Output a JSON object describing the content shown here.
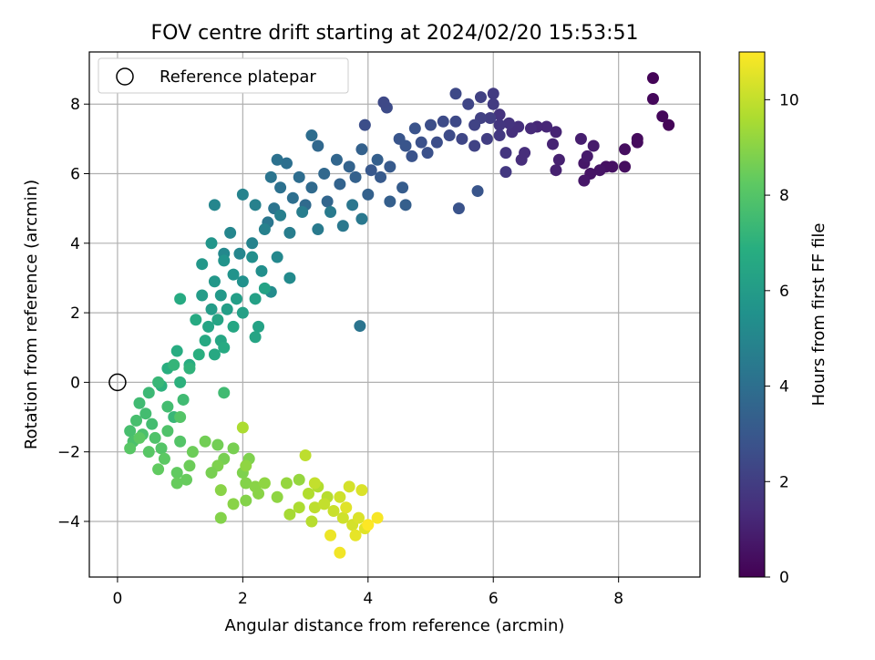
{
  "chart_data": {
    "type": "scatter",
    "title": "FOV centre drift starting at 2024/02/20 15:53:51",
    "xlabel": "Angular distance from reference (arcmin)",
    "ylabel": "Rotation from reference (arcmin)",
    "xlim": [
      -0.45,
      9.3
    ],
    "ylim": [
      -5.6,
      9.5
    ],
    "xticks": [
      0,
      2,
      4,
      6,
      8
    ],
    "yticks": [
      -4,
      -2,
      0,
      2,
      4,
      6,
      8
    ],
    "grid": true,
    "legend": {
      "placement": "top-left",
      "entries": [
        {
          "label": "Reference platepar",
          "marker": "open-circle"
        }
      ]
    },
    "reference_point": {
      "x": 0,
      "y": 0
    },
    "colorbar": {
      "label": "Hours from first FF file",
      "colormap": "viridis",
      "range": [
        0,
        11
      ],
      "ticks": [
        0,
        2,
        4,
        6,
        8,
        10
      ]
    },
    "points": [
      [
        8.55,
        8.75,
        0.1
      ],
      [
        8.8,
        7.4,
        0.1
      ],
      [
        8.7,
        7.65,
        0.2
      ],
      [
        8.55,
        8.15,
        0.2
      ],
      [
        8.3,
        7.0,
        0.3
      ],
      [
        8.3,
        6.9,
        0.3
      ],
      [
        8.1,
        6.7,
        0.4
      ],
      [
        8.1,
        6.2,
        0.4
      ],
      [
        7.9,
        6.2,
        0.5
      ],
      [
        7.8,
        6.2,
        0.5
      ],
      [
        7.7,
        6.1,
        0.6
      ],
      [
        7.55,
        6.0,
        0.6
      ],
      [
        7.45,
        5.8,
        0.7
      ],
      [
        7.45,
        6.3,
        0.7
      ],
      [
        7.5,
        6.5,
        0.8
      ],
      [
        7.6,
        6.8,
        0.8
      ],
      [
        7.4,
        7.0,
        0.9
      ],
      [
        7.05,
        6.4,
        1.0
      ],
      [
        7.0,
        6.1,
        1.0
      ],
      [
        7.0,
        7.2,
        1.1
      ],
      [
        6.95,
        6.85,
        1.1
      ],
      [
        6.85,
        7.35,
        1.2
      ],
      [
        6.7,
        7.35,
        1.2
      ],
      [
        6.6,
        7.3,
        1.3
      ],
      [
        6.45,
        6.4,
        1.4
      ],
      [
        6.5,
        6.6,
        1.4
      ],
      [
        6.4,
        7.35,
        1.5
      ],
      [
        6.3,
        7.2,
        1.5
      ],
      [
        6.25,
        7.45,
        1.6
      ],
      [
        6.1,
        7.7,
        1.6
      ],
      [
        6.1,
        7.4,
        1.7
      ],
      [
        6.2,
        6.6,
        1.7
      ],
      [
        6.2,
        6.05,
        1.8
      ],
      [
        6.1,
        7.1,
        1.8
      ],
      [
        6.0,
        8.0,
        1.9
      ],
      [
        6.0,
        8.3,
        1.9
      ],
      [
        5.95,
        7.6,
        2.0
      ],
      [
        5.9,
        7.0,
        2.0
      ],
      [
        5.8,
        8.2,
        2.1
      ],
      [
        5.8,
        7.6,
        2.1
      ],
      [
        5.7,
        6.8,
        2.2
      ],
      [
        5.7,
        7.4,
        2.2
      ],
      [
        5.6,
        8.0,
        2.3
      ],
      [
        5.5,
        7.0,
        2.3
      ],
      [
        5.4,
        8.3,
        2.4
      ],
      [
        5.4,
        7.5,
        2.4
      ],
      [
        5.3,
        7.1,
        2.5
      ],
      [
        5.2,
        7.5,
        2.5
      ],
      [
        5.1,
        6.9,
        2.6
      ],
      [
        5.0,
        7.4,
        2.6
      ],
      [
        4.95,
        6.6,
        2.7
      ],
      [
        4.85,
        6.9,
        2.7
      ],
      [
        4.75,
        7.3,
        2.8
      ],
      [
        4.7,
        6.5,
        2.8
      ],
      [
        4.6,
        6.8,
        2.9
      ],
      [
        4.5,
        7.0,
        2.9
      ],
      [
        5.45,
        5.0,
        2.8
      ],
      [
        5.75,
        5.5,
        2.9
      ],
      [
        4.3,
        7.9,
        2.5
      ],
      [
        4.25,
        8.05,
        2.4
      ],
      [
        3.95,
        7.4,
        2.6
      ],
      [
        4.05,
        6.1,
        3.0
      ],
      [
        4.2,
        5.9,
        3.1
      ],
      [
        4.35,
        6.2,
        3.1
      ],
      [
        4.55,
        5.6,
        3.2
      ],
      [
        4.6,
        5.1,
        3.3
      ],
      [
        4.35,
        5.2,
        3.3
      ],
      [
        4.15,
        6.4,
        3.3
      ],
      [
        4.0,
        5.4,
        3.4
      ],
      [
        3.8,
        5.9,
        3.4
      ],
      [
        3.9,
        6.7,
        3.4
      ],
      [
        3.7,
        6.2,
        3.5
      ],
      [
        3.55,
        5.7,
        3.5
      ],
      [
        3.5,
        6.4,
        3.6
      ],
      [
        3.35,
        5.2,
        3.6
      ],
      [
        3.3,
        6.0,
        3.7
      ],
      [
        3.2,
        6.8,
        3.7
      ],
      [
        3.1,
        5.6,
        3.8
      ],
      [
        3.0,
        5.1,
        3.8
      ],
      [
        3.1,
        7.1,
        3.9
      ],
      [
        2.9,
        5.9,
        3.9
      ],
      [
        2.8,
        5.3,
        4.0
      ],
      [
        2.7,
        6.3,
        4.0
      ],
      [
        2.6,
        5.6,
        4.1
      ],
      [
        2.55,
        6.4,
        4.1
      ],
      [
        2.5,
        5.0,
        4.2
      ],
      [
        2.45,
        5.9,
        4.2
      ],
      [
        2.4,
        4.6,
        4.3
      ],
      [
        3.75,
        5.1,
        4.3
      ],
      [
        3.9,
        4.7,
        4.4
      ],
      [
        3.6,
        4.5,
        4.4
      ],
      [
        3.4,
        4.9,
        4.5
      ],
      [
        3.2,
        4.4,
        4.5
      ],
      [
        2.95,
        4.9,
        4.6
      ],
      [
        2.75,
        4.3,
        4.6
      ],
      [
        2.6,
        4.8,
        4.7
      ],
      [
        2.35,
        4.4,
        4.8
      ],
      [
        2.2,
        5.1,
        4.8
      ],
      [
        2.0,
        5.4,
        4.9
      ],
      [
        2.15,
        4.0,
        4.9
      ],
      [
        1.95,
        3.7,
        5.0
      ],
      [
        1.8,
        4.3,
        5.0
      ],
      [
        1.7,
        3.7,
        5.1
      ],
      [
        2.55,
        3.6,
        5.1
      ],
      [
        2.75,
        3.0,
        5.2
      ],
      [
        2.45,
        2.6,
        5.3
      ],
      [
        2.3,
        3.2,
        5.4
      ],
      [
        2.15,
        3.6,
        5.4
      ],
      [
        2.0,
        2.9,
        5.5
      ],
      [
        1.85,
        3.1,
        5.6
      ],
      [
        1.7,
        3.5,
        5.6
      ],
      [
        1.55,
        5.1,
        5.0
      ],
      [
        1.5,
        4.0,
        5.7
      ],
      [
        1.35,
        3.4,
        5.8
      ],
      [
        1.55,
        2.9,
        5.8
      ],
      [
        1.65,
        2.5,
        5.9
      ],
      [
        1.5,
        2.1,
        6.0
      ],
      [
        1.35,
        2.5,
        6.0
      ],
      [
        1.75,
        2.1,
        6.1
      ],
      [
        1.9,
        2.4,
        6.1
      ],
      [
        2.0,
        2.0,
        6.2
      ],
      [
        2.2,
        2.4,
        6.2
      ],
      [
        2.35,
        2.7,
        6.3
      ],
      [
        2.25,
        1.6,
        6.3
      ],
      [
        2.2,
        1.3,
        6.4
      ],
      [
        1.45,
        1.6,
        6.4
      ],
      [
        1.65,
        1.2,
        6.5
      ],
      [
        1.85,
        1.6,
        6.5
      ],
      [
        1.55,
        0.8,
        6.6
      ],
      [
        1.4,
        1.2,
        6.6
      ],
      [
        1.25,
        1.8,
        6.7
      ],
      [
        1.0,
        2.4,
        6.7
      ],
      [
        1.15,
        0.5,
        6.8
      ],
      [
        0.95,
        0.9,
        6.8
      ],
      [
        0.8,
        0.4,
        6.9
      ],
      [
        1.0,
        0.0,
        7.0
      ],
      [
        0.7,
        -0.1,
        7.0
      ],
      [
        3.87,
        1.62,
        4.2
      ],
      [
        1.6,
        1.8,
        6.4
      ],
      [
        1.7,
        1.0,
        6.7
      ],
      [
        1.3,
        0.8,
        6.9
      ],
      [
        1.15,
        0.4,
        7.1
      ],
      [
        0.9,
        0.5,
        7.2
      ],
      [
        0.65,
        0.0,
        7.3
      ],
      [
        0.5,
        -0.3,
        7.4
      ],
      [
        0.35,
        -0.6,
        7.5
      ],
      [
        0.45,
        -0.9,
        7.6
      ],
      [
        0.55,
        -1.2,
        7.6
      ],
      [
        0.3,
        -1.1,
        7.7
      ],
      [
        0.2,
        -1.4,
        7.7
      ],
      [
        0.25,
        -1.7,
        7.8
      ],
      [
        0.4,
        -1.5,
        7.8
      ],
      [
        0.6,
        -1.6,
        7.9
      ],
      [
        0.8,
        -1.4,
        7.9
      ],
      [
        0.9,
        -1.0,
        7.3
      ],
      [
        1.05,
        -0.5,
        7.5
      ],
      [
        0.8,
        -0.7,
        7.6
      ],
      [
        1.0,
        -1.7,
        8.0
      ],
      [
        0.7,
        -1.9,
        8.0
      ],
      [
        0.5,
        -2.0,
        8.1
      ],
      [
        0.2,
        -1.9,
        8.1
      ],
      [
        0.35,
        -1.6,
        8.2
      ],
      [
        0.75,
        -2.2,
        8.2
      ],
      [
        0.65,
        -2.5,
        8.3
      ],
      [
        0.95,
        -2.6,
        8.3
      ],
      [
        0.95,
        -2.9,
        8.4
      ],
      [
        1.1,
        -2.8,
        8.4
      ],
      [
        1.15,
        -2.4,
        8.5
      ],
      [
        1.2,
        -2.0,
        8.5
      ],
      [
        1.4,
        -1.7,
        8.6
      ],
      [
        1.6,
        -1.8,
        8.6
      ],
      [
        1.85,
        -1.9,
        8.7
      ],
      [
        1.7,
        -2.2,
        8.7
      ],
      [
        2.0,
        -2.6,
        8.8
      ],
      [
        2.1,
        -2.2,
        8.8
      ],
      [
        2.05,
        -2.9,
        8.9
      ],
      [
        2.2,
        -3.0,
        9.0
      ],
      [
        2.25,
        -3.2,
        9.0
      ],
      [
        2.35,
        -2.9,
        9.1
      ],
      [
        2.55,
        -3.3,
        9.1
      ],
      [
        2.7,
        -2.9,
        9.2
      ],
      [
        2.9,
        -2.8,
        9.2
      ],
      [
        2.05,
        -3.4,
        8.9
      ],
      [
        1.85,
        -3.5,
        9.0
      ],
      [
        1.65,
        -3.1,
        9.0
      ],
      [
        1.6,
        -2.4,
        8.8
      ],
      [
        1.5,
        -2.6,
        8.7
      ],
      [
        1.65,
        -3.9,
        8.9
      ],
      [
        1.7,
        -0.3,
        7.5
      ],
      [
        1.0,
        -1.0,
        8.0
      ],
      [
        2.0,
        -1.3,
        9.6
      ],
      [
        2.05,
        -2.4,
        9.1
      ],
      [
        2.75,
        -3.8,
        9.5
      ],
      [
        2.9,
        -3.6,
        9.6
      ],
      [
        3.1,
        -4.0,
        9.8
      ],
      [
        3.05,
        -3.2,
        9.7
      ],
      [
        3.2,
        -3.0,
        9.7
      ],
      [
        3.35,
        -3.3,
        9.8
      ],
      [
        3.15,
        -3.6,
        9.9
      ],
      [
        3.3,
        -3.5,
        10.0
      ],
      [
        3.45,
        -3.7,
        10.1
      ],
      [
        3.6,
        -3.9,
        10.2
      ],
      [
        3.75,
        -4.1,
        10.3
      ],
      [
        3.85,
        -3.9,
        10.4
      ],
      [
        3.95,
        -4.2,
        10.5
      ],
      [
        3.8,
        -4.4,
        10.6
      ],
      [
        3.55,
        -4.9,
        10.8
      ],
      [
        3.4,
        -4.4,
        10.7
      ],
      [
        3.55,
        -3.3,
        10.2
      ],
      [
        3.7,
        -3.0,
        10.3
      ],
      [
        3.9,
        -3.1,
        10.4
      ],
      [
        3.65,
        -3.6,
        10.5
      ],
      [
        3.0,
        -2.1,
        9.9
      ],
      [
        3.15,
        -2.9,
        10.0
      ],
      [
        4.15,
        -3.9,
        10.9
      ],
      [
        4.0,
        -4.1,
        11.0
      ]
    ]
  }
}
